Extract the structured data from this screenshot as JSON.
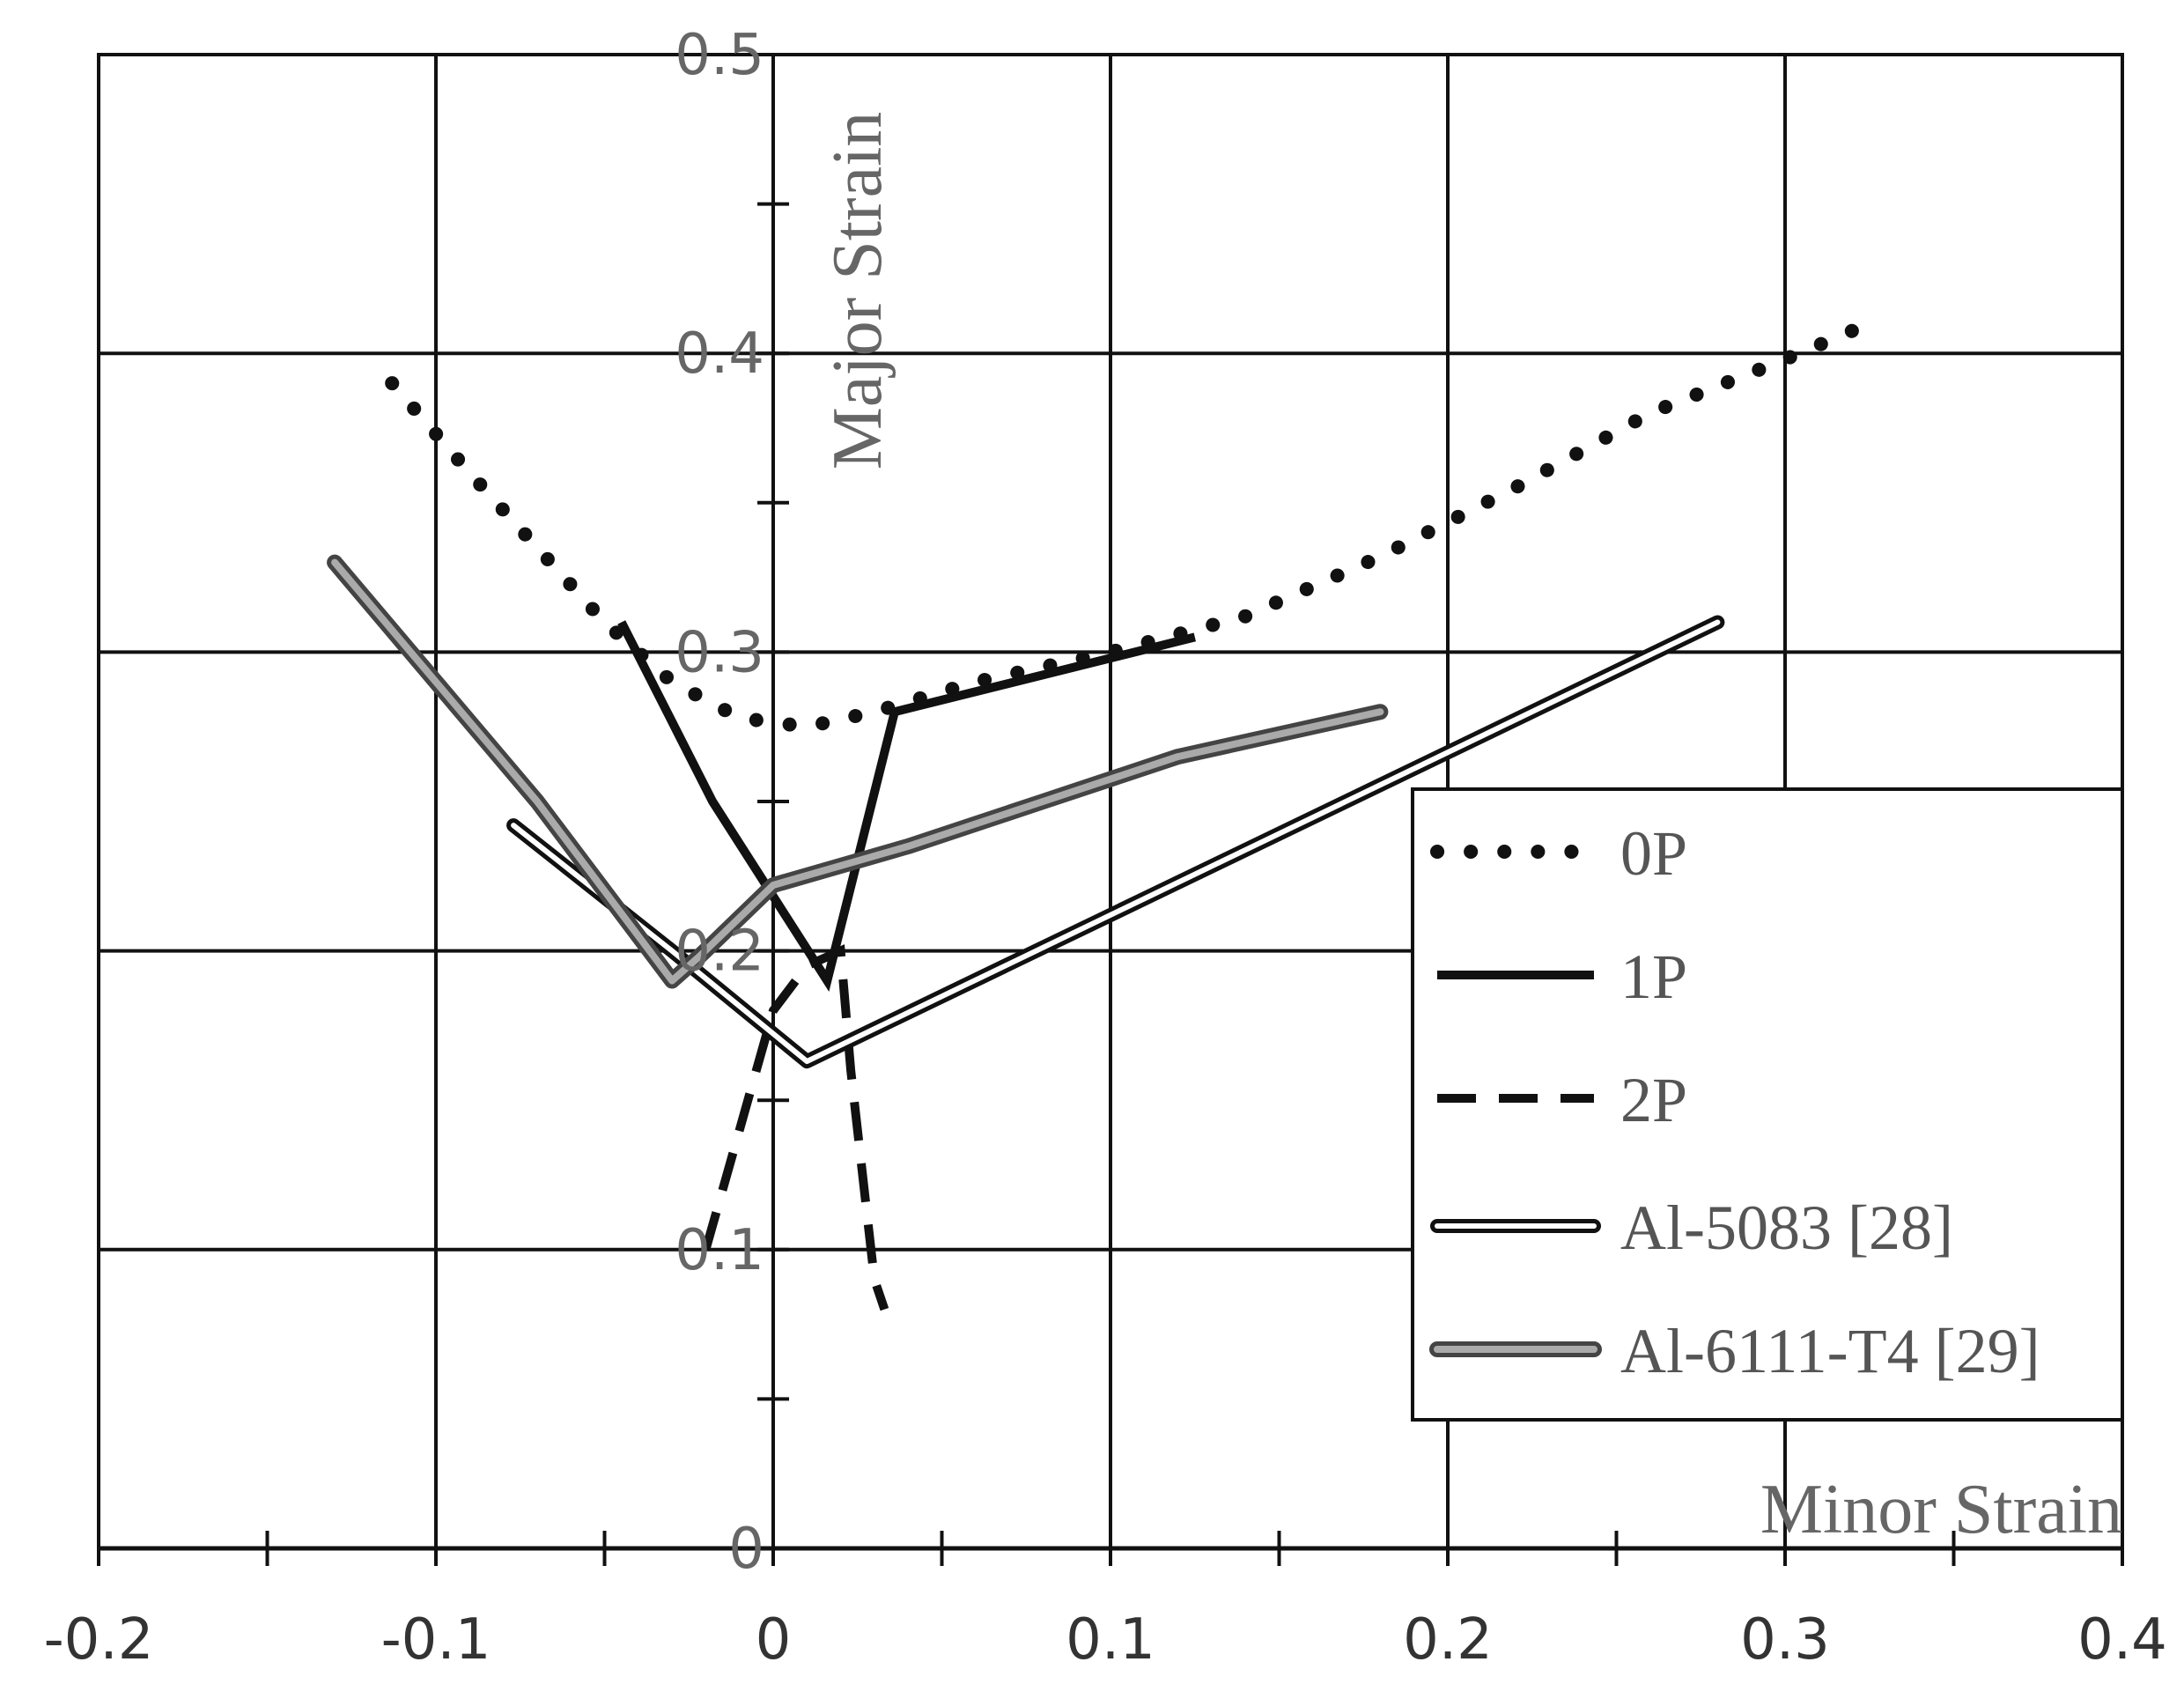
{
  "chart_data": {
    "type": "line",
    "title": "",
    "xlabel": "Minor Strain",
    "ylabel": "Major Strain",
    "xlim": [
      -0.2,
      0.4
    ],
    "ylim": [
      0,
      0.5
    ],
    "x_ticks": [
      -0.2,
      -0.1,
      0,
      0.1,
      0.2,
      0.3,
      0.4
    ],
    "x_tick_labels": [
      "-0.2",
      "-0.1",
      "0",
      "0.1",
      "0.2",
      "0.3",
      "0.4"
    ],
    "y_ticks": [
      0,
      0.1,
      0.2,
      0.3,
      0.4,
      0.5
    ],
    "y_tick_labels": [
      "0",
      "0.1",
      "0.2",
      "0.3",
      "0.4",
      "0.5"
    ],
    "grid": true,
    "legend_position": "bottom-right",
    "series": [
      {
        "name": "0P",
        "style": "dotted",
        "color": "#111111",
        "x": [
          -0.113,
          -0.09,
          -0.07,
          -0.05,
          -0.03,
          -0.01,
          0.01,
          0.03,
          0.06,
          0.1,
          0.14,
          0.18,
          0.22,
          0.26,
          0.3,
          0.325
        ],
        "y": [
          0.39,
          0.36,
          0.335,
          0.31,
          0.29,
          0.278,
          0.275,
          0.28,
          0.29,
          0.3,
          0.312,
          0.332,
          0.355,
          0.38,
          0.398,
          0.41
        ]
      },
      {
        "name": "1P",
        "style": "solid",
        "color": "#111111",
        "x": [
          -0.045,
          -0.018,
          0.016,
          0.036,
          0.125
        ],
        "y": [
          0.31,
          0.25,
          0.19,
          0.28,
          0.305
        ]
      },
      {
        "name": "2P",
        "style": "dashed",
        "color": "#111111",
        "x": [
          -0.02,
          -0.01,
          -0.005,
          0.0,
          0.01,
          0.02,
          0.023,
          0.027,
          0.03,
          0.033
        ],
        "y": [
          0.1,
          0.14,
          0.16,
          0.18,
          0.195,
          0.2,
          0.16,
          0.12,
          0.09,
          0.08
        ]
      },
      {
        "name": "Al-5083 [28]",
        "style": "double",
        "color": "#111111",
        "x": [
          -0.077,
          -0.03,
          0.01,
          0.28
        ],
        "y": [
          0.242,
          0.2,
          0.163,
          0.31
        ]
      },
      {
        "name": "Al-6111-T4 [29]",
        "style": "double-gray",
        "color": "#555555",
        "x": [
          -0.13,
          -0.1,
          -0.07,
          -0.03,
          -0.022,
          0.0,
          0.04,
          0.08,
          0.12,
          0.18
        ],
        "y": [
          0.33,
          0.29,
          0.25,
          0.19,
          0.198,
          0.222,
          0.235,
          0.25,
          0.265,
          0.28
        ]
      }
    ]
  }
}
